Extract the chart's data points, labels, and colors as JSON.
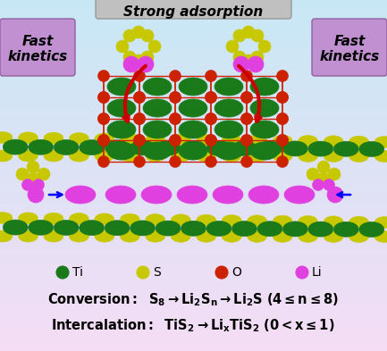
{
  "fig_width": 4.33,
  "fig_height": 3.93,
  "bg_color_top": "#c8e8f5",
  "bg_color_bottom": "#f5ddf5",
  "title_text": "Strong adsorption",
  "title_box_color": "#c0c0c0",
  "title_fontsize": 11,
  "left_label": "Fast\nkinetics",
  "right_label": "Fast\nkinetics",
  "label_box_color": "#c090d0",
  "label_fontsize": 11,
  "ti_color": "#1a7a1a",
  "s_color": "#c8c800",
  "o_color": "#cc2200",
  "li_color": "#e040e0",
  "legend_labels": [
    "Ti",
    "S",
    "O",
    "Li"
  ],
  "legend_colors": [
    "#1a7a1a",
    "#c8c800",
    "#cc2200",
    "#e040e0"
  ]
}
